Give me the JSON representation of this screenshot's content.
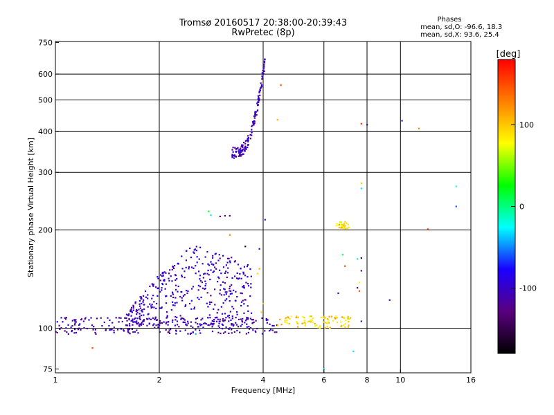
{
  "header": {
    "title": "Tromsø 20160517 20:38:00-20:39:43",
    "subtitle": "RwPretec (8p)",
    "stats_heading": "Phases",
    "stats_o": "mean, sd,O: -96.6, 18.3",
    "stats_x": "mean, sd,X:  93.6, 25.4"
  },
  "chart_data": {
    "type": "scatter",
    "xlabel": "Frequency [MHz]",
    "ylabel": "Stationary phase Virtual Height [km]",
    "xscale": "log",
    "yscale": "log",
    "xlim": [
      1,
      16
    ],
    "ylim": [
      73,
      755
    ],
    "x_ticks": [
      1,
      2,
      4,
      6,
      8,
      10,
      16
    ],
    "y_ticks": [
      75,
      100,
      200,
      300,
      400,
      500,
      600,
      750
    ],
    "x_grid": [
      2,
      4,
      6,
      8,
      10
    ],
    "y_grid": [
      100,
      200,
      300,
      400,
      500,
      600
    ],
    "grid": true,
    "colorbar": {
      "label": "[deg]",
      "range": [
        -180,
        180
      ],
      "ticks": [
        100,
        0,
        -100
      ],
      "colors": [
        "#000000",
        "#5a007f",
        "#1a00ff",
        "#00ffff",
        "#00ff00",
        "#ffff00",
        "#ff8000",
        "#ff0000"
      ]
    },
    "clusters": [
      {
        "name": "F-trace",
        "x": [
          3.25,
          4.05
        ],
        "y": [
          345,
          660
        ],
        "phase": -105,
        "count": 160
      },
      {
        "name": "E-spread",
        "x": [
          1.6,
          3.7
        ],
        "y": [
          102,
          185
        ],
        "phase": -100,
        "count": 420
      },
      {
        "name": "E-ground",
        "x": [
          1.0,
          4.4
        ],
        "y": [
          96,
          108
        ],
        "phase": -110,
        "count": 260
      },
      {
        "name": "E-yellow",
        "x": [
          4.4,
          7.2
        ],
        "y": [
          100,
          109
        ],
        "phase": 95,
        "count": 90
      },
      {
        "name": "yellow-patch",
        "x": [
          6.5,
          7.1
        ],
        "y": [
          202,
          212
        ],
        "phase": 90,
        "count": 30
      }
    ],
    "points": [
      {
        "x": 2.78,
        "y": 228,
        "phase": 20
      },
      {
        "x": 2.82,
        "y": 222,
        "phase": -30
      },
      {
        "x": 3.0,
        "y": 220,
        "phase": -130
      },
      {
        "x": 3.1,
        "y": 221,
        "phase": -130
      },
      {
        "x": 3.2,
        "y": 221,
        "phase": -120
      },
      {
        "x": 4.05,
        "y": 215,
        "phase": -110
      },
      {
        "x": 4.5,
        "y": 555,
        "phase": 150
      },
      {
        "x": 4.4,
        "y": 435,
        "phase": 110
      },
      {
        "x": 7.7,
        "y": 423,
        "phase": 160
      },
      {
        "x": 8.0,
        "y": 420,
        "phase": -100
      },
      {
        "x": 10.1,
        "y": 432,
        "phase": -110
      },
      {
        "x": 11.3,
        "y": 409,
        "phase": 130
      },
      {
        "x": 7.7,
        "y": 278,
        "phase": 100
      },
      {
        "x": 7.7,
        "y": 268,
        "phase": -30
      },
      {
        "x": 14.5,
        "y": 272,
        "phase": -20
      },
      {
        "x": 14.5,
        "y": 236,
        "phase": -60
      },
      {
        "x": 12.0,
        "y": 201,
        "phase": 160
      },
      {
        "x": 3.2,
        "y": 193,
        "phase": 130
      },
      {
        "x": 3.55,
        "y": 178,
        "phase": -160
      },
      {
        "x": 3.9,
        "y": 175,
        "phase": -90
      },
      {
        "x": 6.8,
        "y": 168,
        "phase": 10
      },
      {
        "x": 6.9,
        "y": 155,
        "phase": 150
      },
      {
        "x": 7.5,
        "y": 163,
        "phase": -10
      },
      {
        "x": 7.7,
        "y": 164,
        "phase": -150
      },
      {
        "x": 7.7,
        "y": 150,
        "phase": -120
      },
      {
        "x": 7.6,
        "y": 138,
        "phase": 80
      },
      {
        "x": 7.5,
        "y": 133,
        "phase": -120
      },
      {
        "x": 7.6,
        "y": 130,
        "phase": 150
      },
      {
        "x": 6.6,
        "y": 128,
        "phase": -100
      },
      {
        "x": 9.3,
        "y": 122,
        "phase": -110
      },
      {
        "x": 7.7,
        "y": 105,
        "phase": -110
      },
      {
        "x": 7.3,
        "y": 85,
        "phase": -30
      },
      {
        "x": 6.0,
        "y": 75,
        "phase": -30
      },
      {
        "x": 1.28,
        "y": 87,
        "phase": 150
      },
      {
        "x": 2.55,
        "y": 96,
        "phase": -40
      },
      {
        "x": 3.9,
        "y": 152,
        "phase": 110
      },
      {
        "x": 3.85,
        "y": 147,
        "phase": 90
      },
      {
        "x": 4.0,
        "y": 119,
        "phase": 100
      },
      {
        "x": 3.95,
        "y": 112,
        "phase": 95
      }
    ]
  }
}
